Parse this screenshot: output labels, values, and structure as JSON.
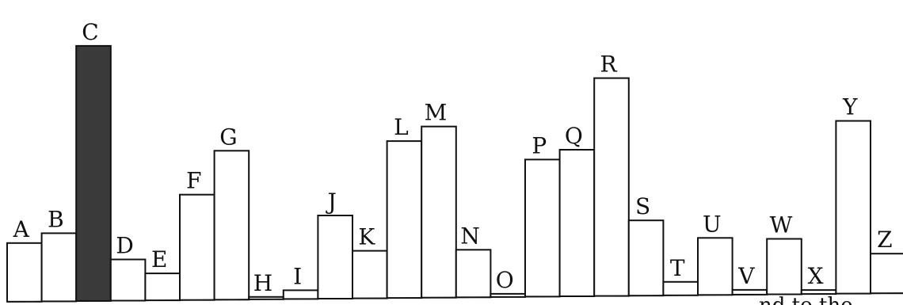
{
  "chart_data": {
    "type": "bar",
    "categories": [
      "A",
      "B",
      "C",
      "D",
      "E",
      "F",
      "G",
      "H",
      "I",
      "J",
      "K",
      "L",
      "M",
      "N",
      "O",
      "P",
      "Q",
      "R",
      "S",
      "T",
      "U",
      "V",
      "W",
      "X",
      "Y",
      "Z"
    ],
    "values": [
      74,
      86,
      322,
      52,
      34,
      133,
      188,
      3,
      11,
      105,
      60,
      198,
      216,
      60,
      4,
      173,
      185,
      275,
      95,
      17,
      72,
      6,
      70,
      5,
      218,
      50
    ],
    "highlighted": "C",
    "ylim": [
      0,
      330
    ],
    "grid": false,
    "bar_color": "#ffffff",
    "highlight_color": "#3a3a3a",
    "edge_color": "#111111"
  },
  "page_fragment": {
    "text": "nd to the"
  }
}
